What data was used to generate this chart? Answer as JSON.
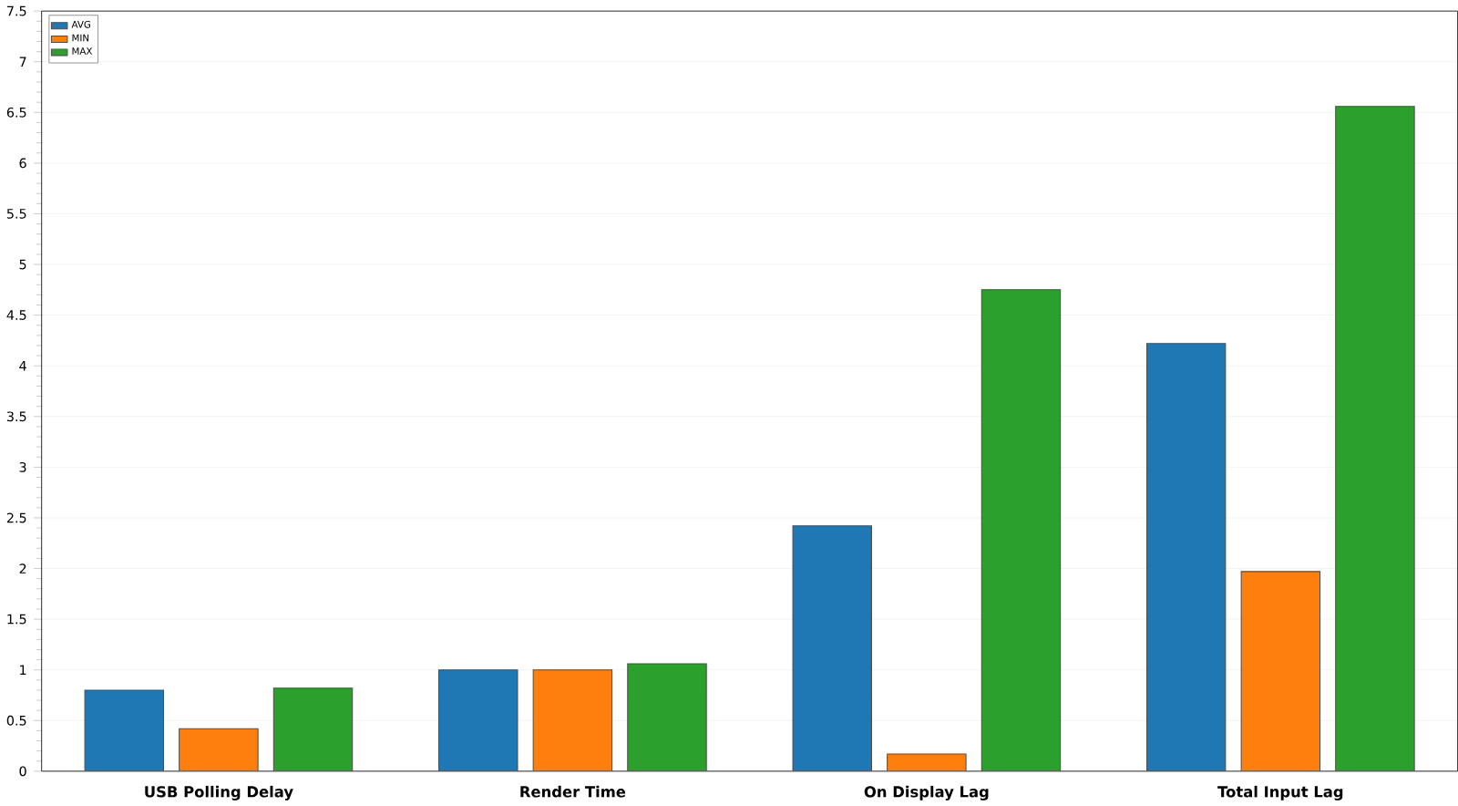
{
  "chart_data": {
    "type": "bar",
    "categories": [
      "USB Polling Delay",
      "Render Time",
      "On Display Lag",
      "Total Input Lag"
    ],
    "series": [
      {
        "name": "AVG",
        "color": "#1f77b4",
        "values": [
          0.8,
          1.0,
          2.42,
          4.22
        ]
      },
      {
        "name": "MIN",
        "color": "#ff7f0e",
        "values": [
          0.42,
          1.0,
          0.17,
          1.97
        ]
      },
      {
        "name": "MAX",
        "color": "#2ca02c",
        "values": [
          0.82,
          1.06,
          4.75,
          6.56
        ]
      }
    ],
    "ylim": [
      0,
      7.5
    ],
    "yticks": [
      0,
      0.5,
      1,
      1.5,
      2,
      2.5,
      3,
      3.5,
      4,
      4.5,
      5,
      5.5,
      6,
      6.5,
      7,
      7.5
    ],
    "grid": "y",
    "legend": "top left"
  }
}
